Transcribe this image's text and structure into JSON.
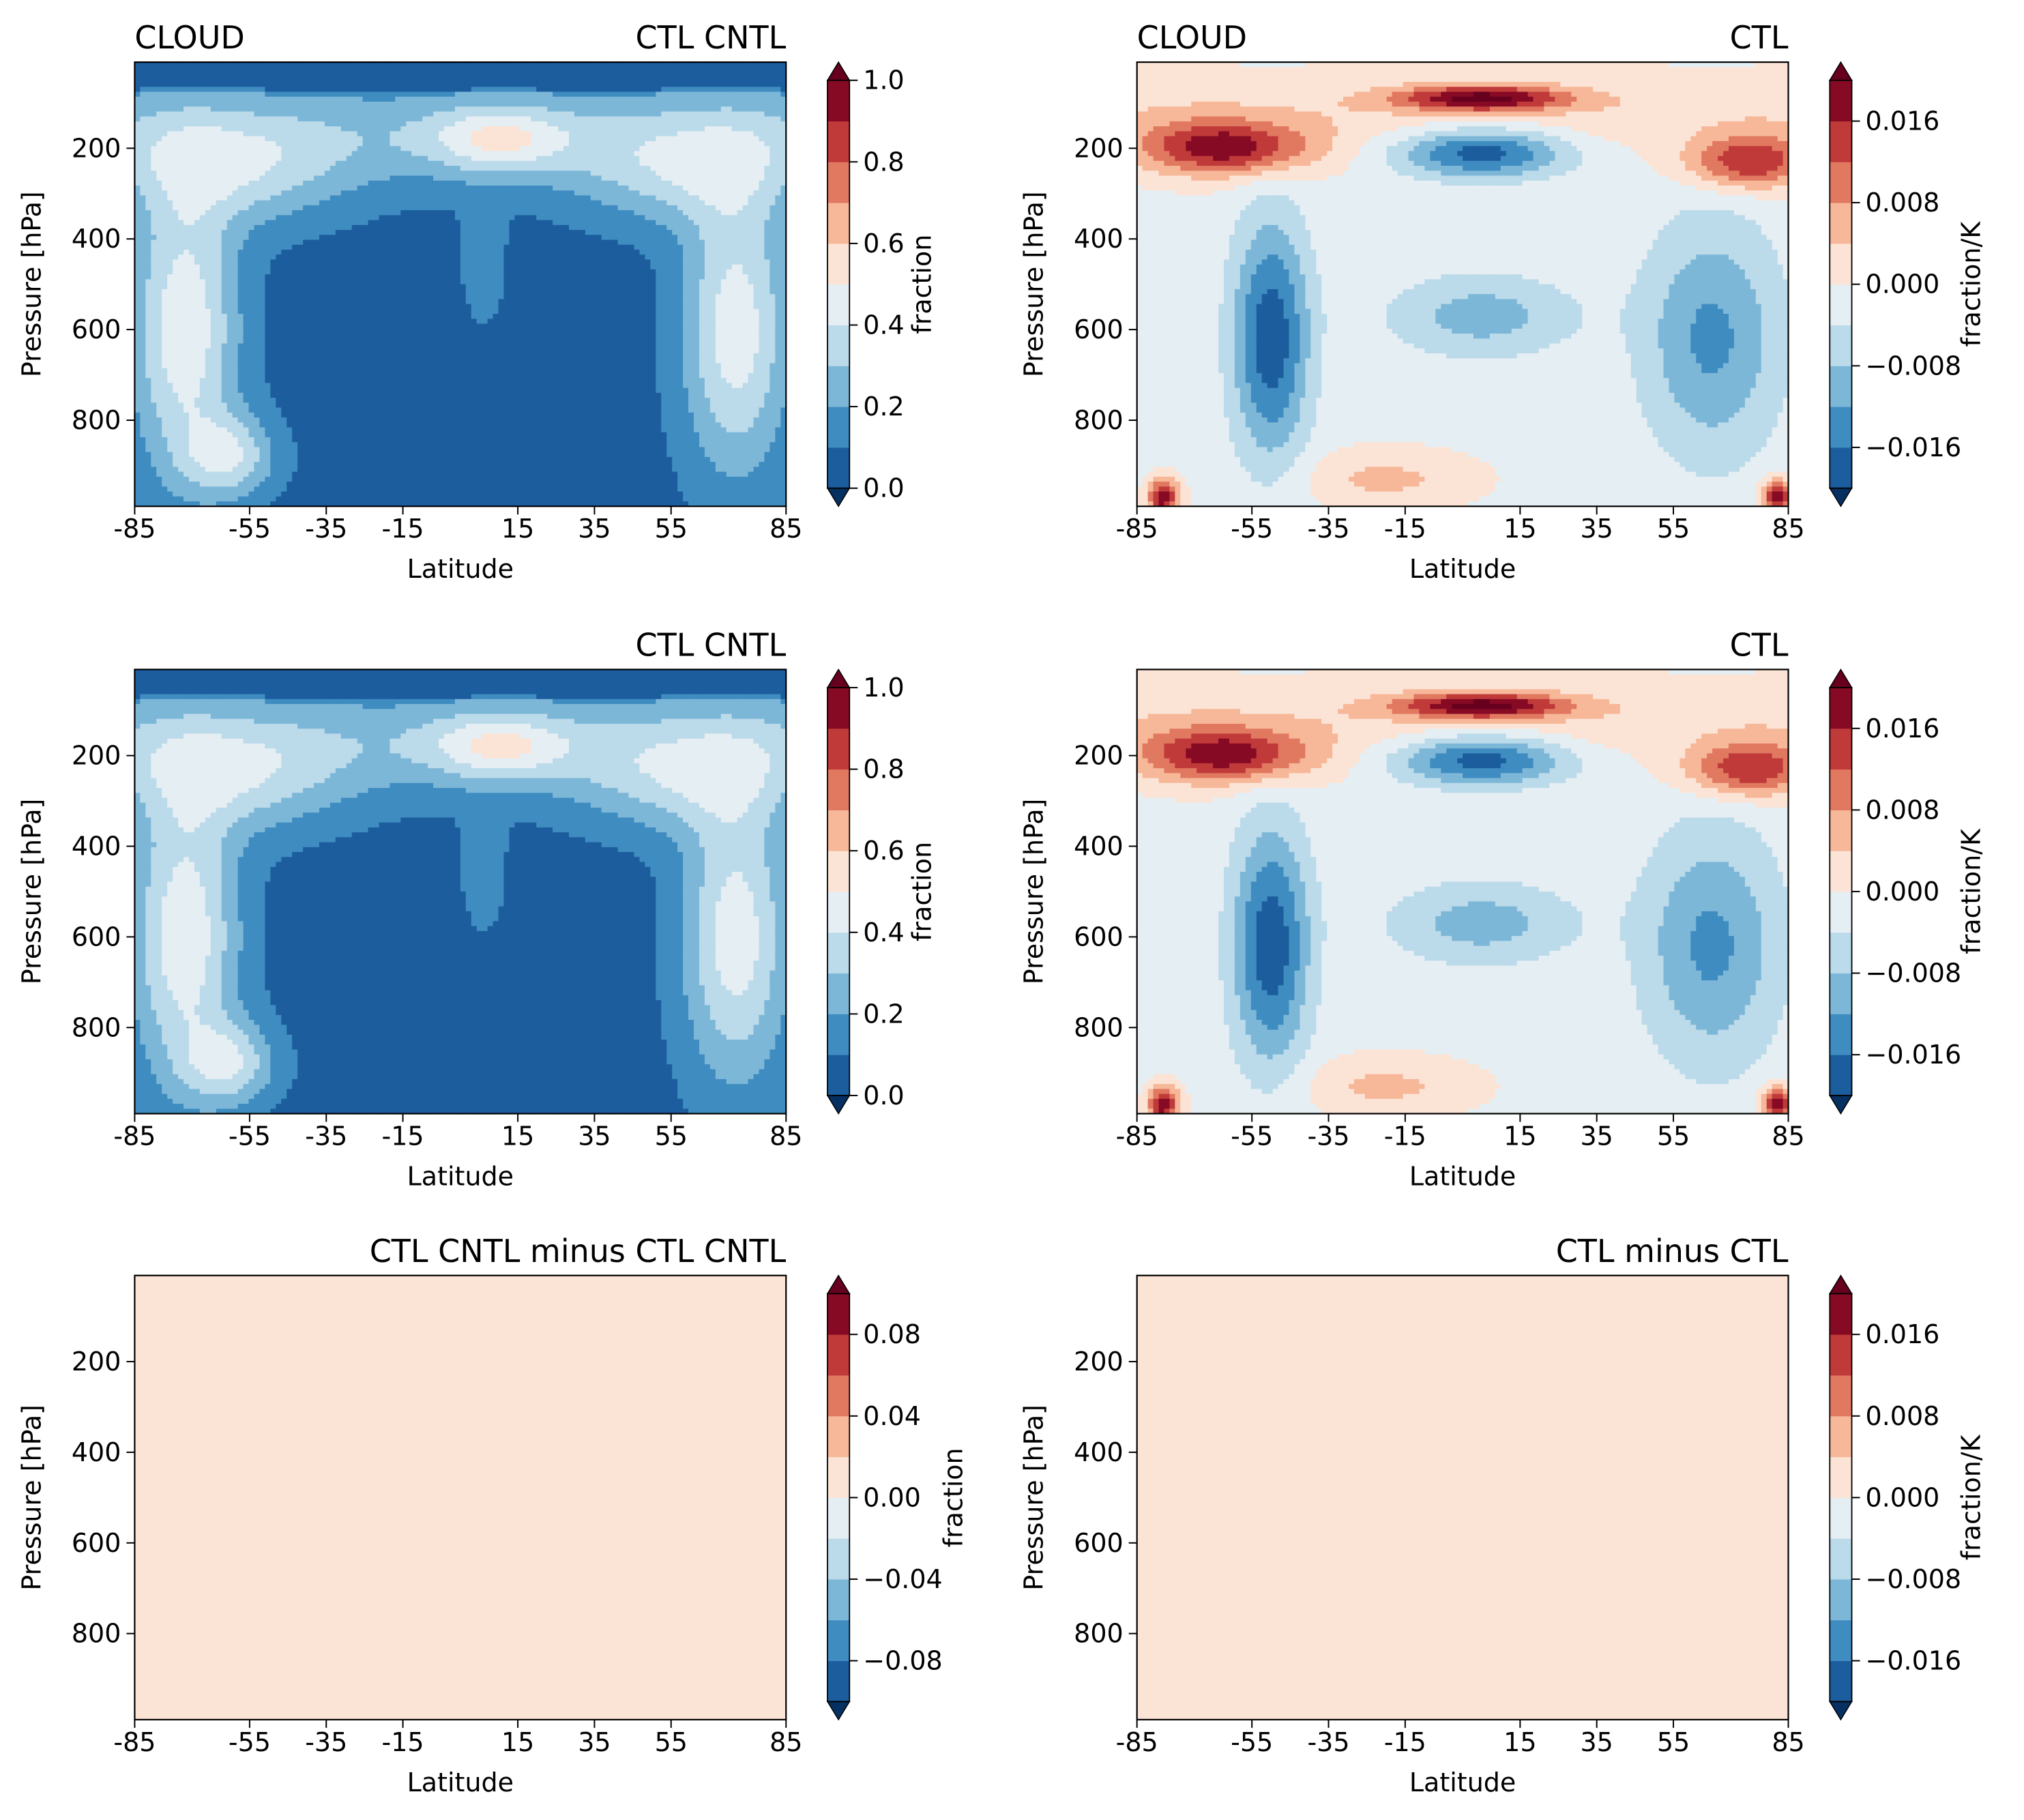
{
  "figure": {
    "xlabel": "Latitude",
    "ylabel": "Pressure [hPa]",
    "xticks": [
      "-85",
      "-55",
      "-35",
      "-15",
      "15",
      "35",
      "55",
      "85"
    ],
    "yticks": [
      "200",
      "400",
      "600",
      "800"
    ]
  },
  "colorbars": [
    {
      "label": "fraction",
      "ticks": [
        "0.0",
        "0.2",
        "0.4",
        "0.6",
        "0.8",
        "1.0"
      ],
      "range": [
        0.0,
        1.0
      ],
      "levels": 10
    },
    {
      "label": "fraction/K",
      "ticks": [
        "−0.016",
        "−0.008",
        "0.000",
        "0.008",
        "0.016"
      ],
      "range": [
        -0.02,
        0.02
      ],
      "levels": 10
    },
    {
      "label": "fraction",
      "ticks": [
        "−0.08",
        "−0.04",
        "0.00",
        "0.04",
        "0.08"
      ],
      "range": [
        -0.1,
        0.1
      ],
      "levels": 10
    },
    {
      "label": "fraction/K",
      "ticks": [
        "−0.016",
        "−0.008",
        "0.000",
        "0.008",
        "0.016"
      ],
      "range": [
        -0.02,
        0.02
      ],
      "levels": 10
    }
  ],
  "colors": {
    "rdbu": [
      "#053061",
      "#1c5d9e",
      "#3f8cc1",
      "#7db7d8",
      "#bbdaea",
      "#e5eef3",
      "#fbe4d6",
      "#f7b799",
      "#e17860",
      "#c03a3a",
      "#870a24",
      "#67001f"
    ]
  },
  "chart_data": [
    {
      "type": "contour",
      "panel": "top-left",
      "title_left": "CLOUD",
      "title_right": "CTL CNTL",
      "xlabel": "Latitude",
      "ylabel": "Pressure [hPa]",
      "xlim": [
        -85,
        85
      ],
      "ylim": [
        990,
        10
      ],
      "colorbar_index": 0,
      "field": "cloud_fraction"
    },
    {
      "type": "contour",
      "panel": "top-right",
      "title_left": "CLOUD",
      "title_right": "CTL",
      "xlabel": "Latitude",
      "ylabel": "Pressure [hPa]",
      "xlim": [
        -85,
        85
      ],
      "ylim": [
        990,
        10
      ],
      "colorbar_index": 1,
      "field": "cloud_feedback"
    },
    {
      "type": "contour",
      "panel": "middle-left",
      "title_left": "",
      "title_right": "CTL CNTL",
      "xlabel": "Latitude",
      "ylabel": "Pressure [hPa]",
      "xlim": [
        -85,
        85
      ],
      "ylim": [
        990,
        10
      ],
      "colorbar_index": 0,
      "field": "cloud_fraction"
    },
    {
      "type": "contour",
      "panel": "middle-right",
      "title_left": "",
      "title_right": "CTL",
      "xlabel": "Latitude",
      "ylabel": "Pressure [hPa]",
      "xlim": [
        -85,
        85
      ],
      "ylim": [
        990,
        10
      ],
      "colorbar_index": 1,
      "field": "cloud_feedback"
    },
    {
      "type": "contour",
      "panel": "bottom-left",
      "title_left": "",
      "title_right": "CTL CNTL minus CTL CNTL",
      "xlabel": "Latitude",
      "ylabel": "Pressure [hPa]",
      "xlim": [
        -85,
        85
      ],
      "ylim": [
        990,
        10
      ],
      "colorbar_index": 2,
      "field": "zero",
      "uniform_value": 0.0
    },
    {
      "type": "contour",
      "panel": "bottom-right",
      "title_left": "",
      "title_right": "CTL minus CTL",
      "xlabel": "Latitude",
      "ylabel": "Pressure [hPa]",
      "xlim": [
        -85,
        85
      ],
      "ylim": [
        990,
        10
      ],
      "colorbar_index": 3,
      "field": "zero",
      "uniform_value": 0.0
    }
  ]
}
